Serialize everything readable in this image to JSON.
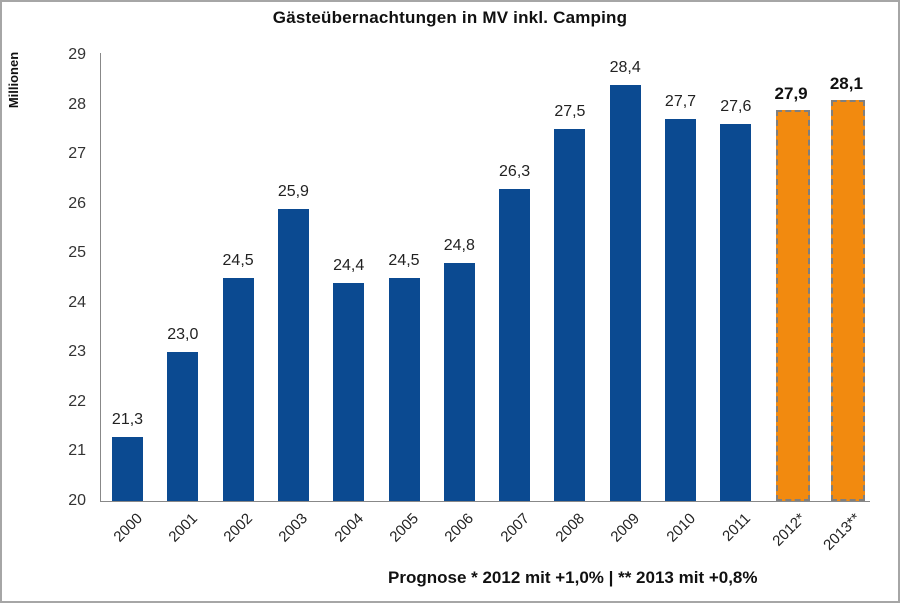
{
  "chart_data": {
    "type": "bar",
    "title": "Gästeübernachtungen in MV inkl. Camping",
    "xlabel": "",
    "ylabel": "Millionen",
    "ylim": [
      20,
      29
    ],
    "yticks": [
      "20",
      "21",
      "22",
      "23",
      "24",
      "25",
      "26",
      "27",
      "28",
      "29"
    ],
    "grid": false,
    "legend": null,
    "categories": [
      "2000",
      "2001",
      "2002",
      "2003",
      "2004",
      "2005",
      "2006",
      "2007",
      "2008",
      "2009",
      "2010",
      "2011",
      "2012*",
      "2013**"
    ],
    "values": [
      21.3,
      23.0,
      24.5,
      25.9,
      24.4,
      24.5,
      24.8,
      26.3,
      27.5,
      28.4,
      27.7,
      27.6,
      27.9,
      28.1
    ],
    "value_labels": [
      "21,3",
      "23,0",
      "24,5",
      "25,9",
      "24,4",
      "24,5",
      "24,8",
      "26,3",
      "27,5",
      "28,4",
      "27,7",
      "27,6",
      "27,9",
      "28,1"
    ],
    "bar_kind": [
      "actual",
      "actual",
      "actual",
      "actual",
      "actual",
      "actual",
      "actual",
      "actual",
      "actual",
      "actual",
      "actual",
      "actual",
      "forecast",
      "forecast"
    ],
    "colors": {
      "actual": "#0b4a91",
      "forecast": "#f28a0f",
      "forecast_border": "#7f7f7f"
    },
    "annotations": [
      "Prognose * 2012 mit +1,0% | ** 2013 mit +0,8%"
    ]
  },
  "footnote": "Prognose * 2012 mit +1,0% | ** 2013 mit +0,8%"
}
